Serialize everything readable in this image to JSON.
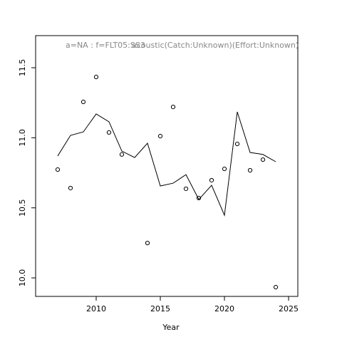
{
  "chart_data": {
    "type": "line",
    "title": [
      "a=NA  :  f=FLT05:SS3",
      "acoustic(Catch:Unknown)(Effort:Unknown)"
    ],
    "xlabel": "Year",
    "x": [
      2007,
      2008,
      2009,
      2010,
      2011,
      2012,
      2013,
      2014,
      2015,
      2016,
      2017,
      2018,
      2019,
      2020,
      2021,
      2022,
      2023,
      2024
    ],
    "series": [
      {
        "style": "line",
        "color": "#000000",
        "values": [
          10.87,
          11.017,
          11.042,
          11.17,
          11.114,
          10.905,
          10.859,
          10.961,
          10.656,
          10.676,
          10.737,
          10.56,
          10.661,
          10.447,
          11.185,
          10.895,
          10.881,
          10.829
        ]
      },
      {
        "style": "points",
        "color": "#000000",
        "values": [
          10.773,
          10.641,
          11.256,
          11.434,
          11.038,
          10.881,
          null,
          10.249,
          11.012,
          11.22,
          10.636,
          10.57,
          10.697,
          10.778,
          10.956,
          10.768,
          10.844,
          9.934
        ]
      }
    ],
    "xlim": [
      2005.28,
      2025.72
    ],
    "ylim": [
      9.868,
      11.729
    ],
    "xticks": [
      2010,
      2015,
      2020,
      2025
    ],
    "yticks": [
      {
        "value": 10,
        "label": "10.0"
      },
      10.5,
      {
        "value": 11,
        "label": "11.0"
      },
      11.5
    ],
    "grid": false
  }
}
